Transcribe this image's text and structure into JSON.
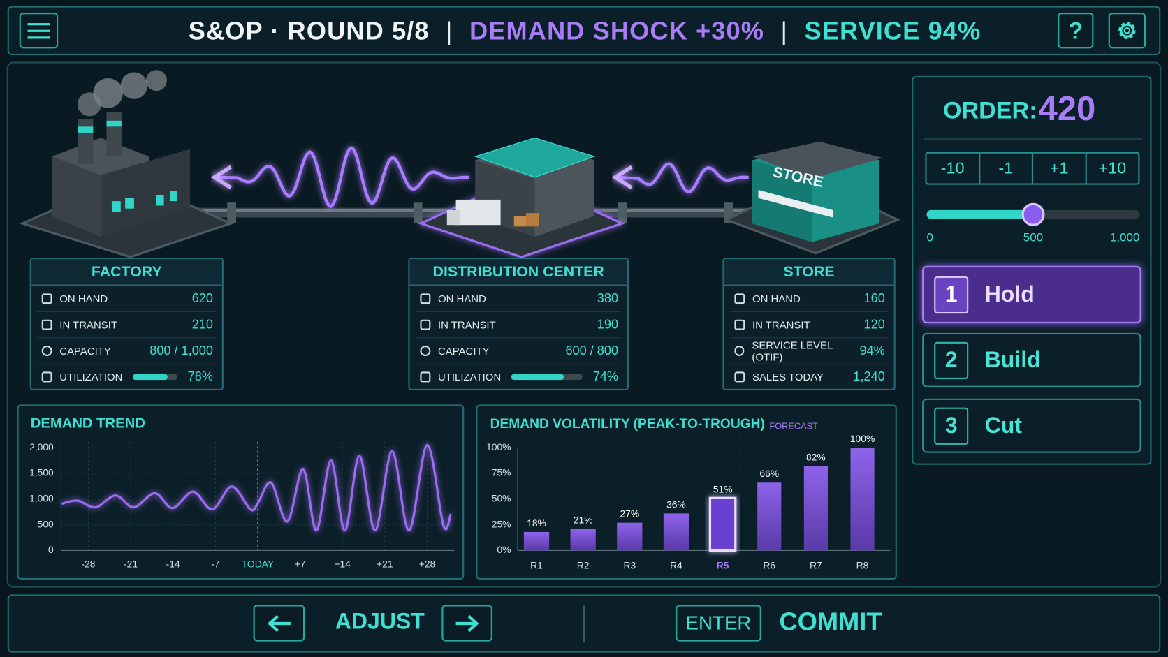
{
  "header": {
    "title": "S&OP · ROUND 5/8",
    "shock": "DEMAND SHOCK +30%",
    "service": "SERVICE 94%",
    "help": "?"
  },
  "scene": {
    "store_sign": "STORE"
  },
  "nodes": [
    {
      "title": "FACTORY",
      "rows": [
        {
          "label": "ON HAND",
          "value": "620"
        },
        {
          "label": "IN TRANSIT",
          "value": "210"
        },
        {
          "label": "CAPACITY",
          "value": "800 / 1,000"
        },
        {
          "label": "UTILIZATION",
          "value": {
            "value": 78,
            "label": "78%"
          }
        }
      ]
    },
    {
      "title": "DISTRIBUTION CENTER",
      "rows": [
        {
          "label": "ON HAND",
          "value": "380"
        },
        {
          "label": "IN TRANSIT",
          "value": "190"
        },
        {
          "label": "CAPACITY",
          "value": "600 / 800"
        },
        {
          "label": "UTILIZATION",
          "value": {
            "value": 74,
            "label": "74%"
          }
        }
      ]
    },
    {
      "title": "STORE",
      "rows": [
        {
          "label": "ON HAND",
          "value": "160"
        },
        {
          "label": "IN TRANSIT",
          "value": "120"
        },
        {
          "label": "SERVICE LEVEL (OTIF)",
          "value": "94%"
        },
        {
          "label": "SALES TODAY",
          "value": "1,240"
        }
      ]
    }
  ],
  "order": {
    "label": "ORDER:",
    "value": 420,
    "steps": [
      "-10",
      "-1",
      "+1",
      "+10"
    ],
    "slider": {
      "lim": [
        0,
        1000
      ],
      "value": 500,
      "ticks": [
        0,
        500,
        {
          "value": 1000,
          "label": "1,000"
        }
      ]
    }
  },
  "options": [
    {
      "key": "1",
      "label": "Hold"
    },
    {
      "key": "2",
      "label": "Build"
    },
    {
      "key": "3",
      "label": "Cut"
    }
  ],
  "selected": 0,
  "footer": {
    "adjust": "ADJUST",
    "enter": "ENTER",
    "commit": "COMMIT"
  },
  "chart_data": [
    {
      "type": "line",
      "title": "DEMAND TREND",
      "x": [
        -32.4,
        -29.8,
        -26.8,
        -23.5,
        -20.5,
        -17,
        -14.1,
        -10.7,
        -7.5,
        -4.3,
        -1.2,
        0,
        2.2,
        4.9,
        7.5,
        9.7,
        12.1,
        14.4,
        16.8,
        19.4,
        22.2,
        25,
        28,
        30.7,
        31.9
      ],
      "values": [
        910,
        970,
        840,
        1070,
        840,
        1115,
        825,
        1145,
        800,
        1245,
        800,
        913,
        1320,
        565,
        1580,
        390,
        1750,
        390,
        1840,
        390,
        1930,
        390,
        2050,
        480,
        710
      ],
      "color": "#9b6cf0",
      "xlim": [
        -32.5,
        32.5
      ],
      "ylim": [
        0,
        2000
      ],
      "yticks": [
        0,
        500,
        {
          "value": 1000,
          "label": "1,000"
        },
        {
          "value": 1500,
          "label": "1,500"
        },
        {
          "value": 2000,
          "label": "2,000"
        }
      ],
      "xticks": [
        -28,
        -21,
        -14,
        -7,
        {
          "value": 0,
          "label": "TODAY"
        },
        {
          "value": 7,
          "label": "+7"
        },
        {
          "value": 14,
          "label": "+14"
        },
        {
          "value": 21,
          "label": "+21"
        },
        {
          "value": 28,
          "label": "+28"
        }
      ],
      "grid": true
    },
    {
      "type": "bar",
      "title": "DEMAND VOLATILITY (PEAK-TO-TROUGH)",
      "annotation": "FORECAST",
      "categories": [
        "R1",
        "R2",
        "R3",
        "R4",
        "R5",
        "R6",
        "R7",
        "R8"
      ],
      "values": [
        18,
        21,
        27,
        36,
        51,
        66,
        82,
        100
      ],
      "value_labels": [
        "18%",
        "21%",
        "27%",
        "36%",
        "51%",
        "66%",
        "82%",
        "100%"
      ],
      "ylim": [
        0,
        100
      ],
      "yticks": [
        {
          "value": 0,
          "label": "0%"
        },
        {
          "value": 25,
          "label": "25%"
        },
        {
          "value": 50,
          "label": "50%"
        },
        {
          "value": 75,
          "label": "75%"
        },
        {
          "value": 100,
          "label": "100%"
        }
      ],
      "color": "#7e55d8",
      "highlight": 4,
      "forecast_from": 5
    }
  ]
}
